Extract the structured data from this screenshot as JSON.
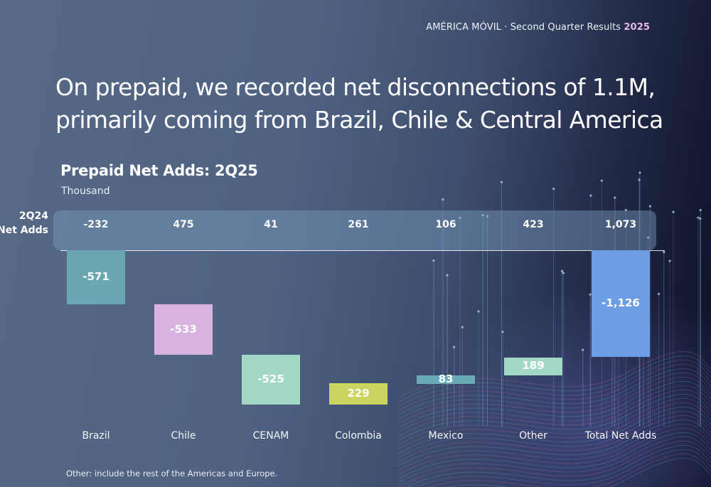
{
  "header": {
    "text": "AMÉRICA MÓVIL · Second Quarter Results ",
    "year": "2025"
  },
  "headline": "On prepaid, we recorded net disconnections of 1.1M, primarily coming from Brazil, Chile & Central America",
  "prior_period": {
    "label_line1": "2Q24",
    "label_line2": "Net Adds"
  },
  "footnote": "Other: include the rest of the Americas and Europe.",
  "colors": {
    "Brazil": "#6aa7b3",
    "Chile": "#d9b3df",
    "CENAM": "#a4d8c6",
    "Colombia": "#cbd660",
    "Mexico": "#6aa9b6",
    "Other": "#a4d8c6",
    "Total Net Adds": "#6d9ee3"
  },
  "chart_data": {
    "type": "bar",
    "subtype": "waterfall",
    "title": "Prepaid Net Adds: 2Q25",
    "ylabel": "Thousand",
    "categories": [
      "Brazil",
      "Chile",
      "CENAM",
      "Colombia",
      "Mexico",
      "Other",
      "Total Net Adds"
    ],
    "values": [
      -571,
      -533,
      -525,
      229,
      83,
      189,
      -1126
    ],
    "value_labels": [
      "-571",
      "-533",
      "-525",
      "229",
      "83",
      "189",
      "-1,126"
    ],
    "prior_period_values": [
      -232,
      475,
      41,
      261,
      106,
      423,
      1073
    ],
    "prior_period_labels": [
      "-232",
      "475",
      "41",
      "261",
      "106",
      "423",
      "1,073"
    ]
  }
}
